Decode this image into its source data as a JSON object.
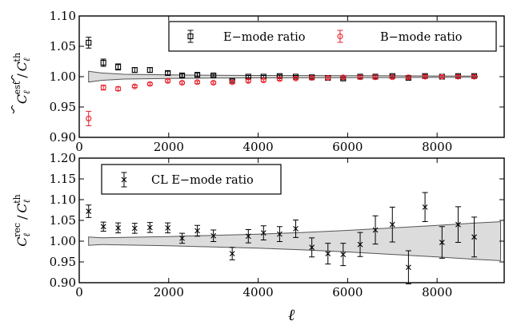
{
  "chart_data": [
    {
      "type": "scatter",
      "panel": "top",
      "ylabel": "C̃_ℓ^est / C̃_ℓ^th",
      "ylabel_main": "C",
      "ylabel_sup": "est",
      "ylabel_den": "C",
      "ylabel_den_sup": "th",
      "ylabel_sub": "ℓ",
      "ylabel_slash": "/",
      "xlim": [
        0,
        9500
      ],
      "ylim": [
        0.9,
        1.1
      ],
      "xticks": [
        0,
        2000,
        4000,
        6000,
        8000
      ],
      "xtick_labels": [
        "0",
        "2000",
        "4000",
        "6000",
        "8000"
      ],
      "yticks": [
        0.9,
        0.95,
        1.0,
        1.05,
        1.1
      ],
      "ytick_labels": [
        "0.90",
        "0.95",
        "1.00",
        "1.05",
        "1.10"
      ],
      "legend": [
        "E−mode ratio",
        "B−mode ratio"
      ],
      "legend_loc": "top-right",
      "series": [
        {
          "name": "E−mode ratio",
          "marker": "square",
          "color": "#000000",
          "x": [
            210,
            540,
            870,
            1240,
            1580,
            1980,
            2300,
            2640,
            3000,
            3420,
            3780,
            4120,
            4480,
            4840,
            5200,
            5560,
            5900,
            6280,
            6620,
            7000,
            7360,
            7730,
            8110,
            8470,
            8830
          ],
          "y": [
            1.056,
            1.023,
            1.016,
            1.011,
            1.011,
            1.006,
            1.002,
            1.003,
            1.002,
            0.993,
            1.0,
            1.0,
            1.001,
            1.0,
            0.999,
            0.998,
            0.997,
            1.0,
            1.0,
            1.001,
            0.998,
            1.001,
            1.0,
            1.001,
            1.001
          ],
          "err": [
            0.009,
            0.006,
            0.005,
            0.004,
            0.004,
            0.003,
            0.003,
            0.003,
            0.002,
            0.002,
            0.002,
            0.002,
            0.002,
            0.002,
            0.002,
            0.002,
            0.002,
            0.002,
            0.002,
            0.002,
            0.002,
            0.002,
            0.002,
            0.002,
            0.002
          ]
        },
        {
          "name": "B−mode ratio",
          "marker": "circle",
          "color": "#e8222c",
          "x": [
            210,
            540,
            870,
            1240,
            1580,
            1980,
            2300,
            2640,
            3000,
            3420,
            3780,
            4120,
            4480,
            4840,
            5200,
            5560,
            5900,
            6280,
            6620,
            7000,
            7360,
            7730,
            8110,
            8470,
            8830
          ],
          "y": [
            0.931,
            0.982,
            0.98,
            0.984,
            0.988,
            0.993,
            0.99,
            0.991,
            0.99,
            0.991,
            0.993,
            0.994,
            0.996,
            0.997,
            0.998,
            0.998,
            0.999,
            0.999,
            0.999,
            0.999,
            0.999,
            1.0,
            1.0,
            1.0,
            1.0
          ],
          "err": [
            0.012,
            0.004,
            0.003,
            0.002,
            0.002,
            0.002,
            0.002,
            0.002,
            0.002,
            0.002,
            0.002,
            0.002,
            0.002,
            0.002,
            0.002,
            0.002,
            0.002,
            0.002,
            0.002,
            0.002,
            0.002,
            0.002,
            0.002,
            0.002,
            0.002
          ]
        }
      ],
      "band": {
        "x": [
          210,
          500,
          1000,
          2000,
          3000,
          4000,
          5000,
          6000,
          7000,
          8000,
          8900
        ],
        "lower": [
          0.991,
          0.994,
          0.996,
          0.997,
          0.9976,
          0.998,
          0.9982,
          0.9984,
          0.9986,
          0.9988,
          0.999
        ],
        "upper": [
          1.009,
          1.006,
          1.004,
          1.003,
          1.0024,
          1.002,
          1.0018,
          1.0016,
          1.0014,
          1.0012,
          1.001
        ],
        "color": "#dcdcdc"
      }
    },
    {
      "type": "scatter",
      "panel": "bottom",
      "ylabel": "C_ℓ^rec / C_ℓ^th",
      "ylabel_main": "C",
      "ylabel_sup": "rec",
      "ylabel_den": "C",
      "ylabel_den_sup": "th",
      "ylabel_sub": "ℓ",
      "ylabel_slash": "/",
      "xlabel": "ℓ",
      "xlim": [
        0,
        9500
      ],
      "ylim": [
        0.9,
        1.2
      ],
      "xticks": [
        0,
        2000,
        4000,
        6000,
        8000
      ],
      "xtick_labels": [
        "0",
        "2000",
        "4000",
        "6000",
        "8000"
      ],
      "yticks": [
        0.9,
        0.95,
        1.0,
        1.05,
        1.1,
        1.15,
        1.2
      ],
      "ytick_labels": [
        "0.90",
        "0.95",
        "1.00",
        "1.05",
        "1.10",
        "1.15",
        "1.20"
      ],
      "legend": [
        "CL E−mode ratio"
      ],
      "legend_loc": "top-left",
      "series": [
        {
          "name": "CL E−mode ratio",
          "marker": "x",
          "color": "#000000",
          "x": [
            210,
            540,
            870,
            1240,
            1580,
            1980,
            2300,
            2640,
            3000,
            3420,
            3780,
            4120,
            4480,
            4840,
            5200,
            5560,
            5900,
            6280,
            6620,
            7000,
            7360,
            7730,
            8110,
            8470,
            8830
          ],
          "y": [
            1.072,
            1.035,
            1.032,
            1.031,
            1.033,
            1.032,
            1.007,
            1.025,
            1.013,
            0.97,
            1.012,
            1.02,
            1.017,
            1.03,
            0.985,
            0.97,
            0.968,
            0.992,
            1.027,
            1.04,
            0.937,
            1.082,
            0.997,
            1.04,
            1.01
          ]
        }
      ],
      "err": [
        0.015,
        0.011,
        0.012,
        0.012,
        0.012,
        0.012,
        0.012,
        0.013,
        0.014,
        0.015,
        0.016,
        0.017,
        0.018,
        0.021,
        0.023,
        0.025,
        0.027,
        0.029,
        0.034,
        0.042,
        0.04,
        0.035,
        0.038,
        0.043,
        0.048
      ],
      "band": {
        "x": [
          210,
          500,
          1000,
          2000,
          3000,
          4000,
          5000,
          6000,
          7000,
          8000,
          8900,
          9420
        ],
        "lower": [
          0.99,
          0.992,
          0.991,
          0.989,
          0.986,
          0.983,
          0.979,
          0.974,
          0.968,
          0.962,
          0.956,
          0.953
        ],
        "upper": [
          1.01,
          1.008,
          1.009,
          1.011,
          1.014,
          1.017,
          1.021,
          1.026,
          1.032,
          1.038,
          1.044,
          1.047
        ],
        "color": "#dcdcdc"
      }
    }
  ]
}
